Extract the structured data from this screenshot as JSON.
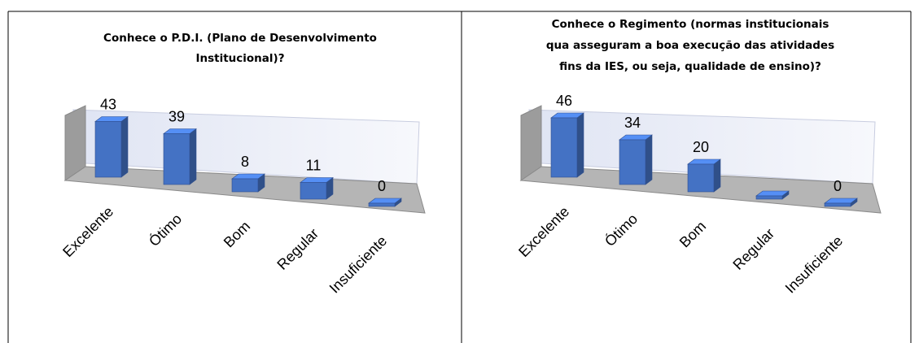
{
  "chart_data": [
    {
      "type": "bar3d",
      "title": [
        "Conhece o P.D.I. (Plano de Desenvolvimento",
        "Institucional)?"
      ],
      "categories": [
        "Excelente",
        "Ótimo",
        "Bom",
        "Regular",
        "Insuficiente"
      ],
      "values": [
        43,
        39,
        8,
        11,
        0
      ],
      "color": "#4472c4"
    },
    {
      "type": "bar3d",
      "title": [
        "Conhece o Regimento (normas institucionais",
        "qua asseguram a boa execução das atividades",
        "fins da IES, ou seja, qualidade de ensino)?"
      ],
      "categories": [
        "Excelente",
        "Ótimo",
        "Bom",
        "Regular",
        "Insuficiente"
      ],
      "values": [
        46,
        34,
        20,
        0,
        0
      ],
      "value_labels": [
        "46",
        "34",
        "20",
        null,
        "0"
      ],
      "color": "#4472c4"
    }
  ]
}
